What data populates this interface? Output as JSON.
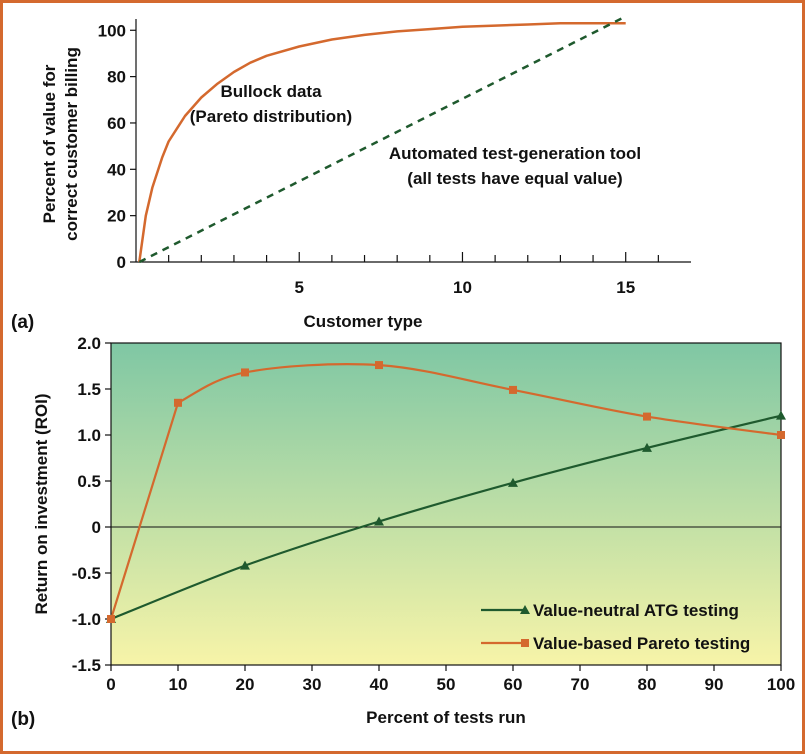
{
  "colors": {
    "frame": "#d4692e",
    "orange_series": "#d4692e",
    "green_series": "#1f5a2e",
    "gradient_top": "#7fc7a4",
    "gradient_bottom": "#f7f4a8"
  },
  "chart_data": [
    {
      "panel_label": "(a)",
      "type": "line",
      "xlabel": "Customer type",
      "ylabel": "Percent of value for correct customer billing",
      "ylabel_lines": [
        "Percent of value for",
        "correct customer billing"
      ],
      "xlim": [
        0,
        17
      ],
      "ylim": [
        0,
        104
      ],
      "x_ticks": [
        5,
        10,
        15
      ],
      "x_tick_labels": [
        "5",
        "10",
        "15"
      ],
      "y_ticks": [
        0,
        20,
        40,
        60,
        80,
        100
      ],
      "y_tick_labels": [
        "0",
        "20",
        "40",
        "60",
        "80",
        "100"
      ],
      "annotations": [
        {
          "text": "Bullock data",
          "target": "bullock"
        },
        {
          "text": "(Pareto distribution)",
          "target": "bullock"
        },
        {
          "text": "Automated test-generation tool",
          "target": "atg"
        },
        {
          "text": "(all tests have equal value)",
          "target": "atg"
        }
      ],
      "series": [
        {
          "key": "bullock",
          "style": "solid",
          "x": [
            0.1,
            0.3,
            0.5,
            0.8,
            1.0,
            1.5,
            2.0,
            2.5,
            3.0,
            3.5,
            4.0,
            5.0,
            6.0,
            7.0,
            8.0,
            9.0,
            10.0,
            11.0,
            12.0,
            13.0,
            14.0,
            15.0
          ],
          "y": [
            0,
            20,
            32,
            45,
            52,
            63,
            71,
            77,
            82,
            86,
            89,
            93,
            96,
            98,
            99.5,
            100.5,
            101.5,
            102,
            102.5,
            103,
            103,
            103
          ]
        },
        {
          "key": "atg",
          "style": "dashed",
          "x": [
            0.1,
            15.0
          ],
          "y": [
            0,
            106
          ]
        }
      ]
    },
    {
      "panel_label": "(b)",
      "type": "line",
      "xlabel": "Percent of tests run",
      "ylabel": "Return on investment (ROI)",
      "xlim": [
        0,
        100
      ],
      "ylim": [
        -1.5,
        2.0
      ],
      "x_ticks": [
        0,
        10,
        20,
        30,
        40,
        50,
        60,
        70,
        80,
        90,
        100
      ],
      "x_tick_labels": [
        "0",
        "10",
        "20",
        "30",
        "40",
        "50",
        "60",
        "70",
        "80",
        "90",
        "100"
      ],
      "y_ticks": [
        -1.5,
        -1.0,
        -0.5,
        0,
        0.5,
        1.0,
        1.5,
        2.0
      ],
      "y_tick_labels": [
        "-1.5",
        "-1.0",
        "-0.5",
        "0",
        "0.5",
        "1.0",
        "1.5",
        "2.0"
      ],
      "legend": "bottom-right",
      "series": [
        {
          "name": "Value-neutral ATG testing",
          "marker": "triangle",
          "x": [
            0,
            20,
            40,
            60,
            80,
            100
          ],
          "y": [
            -1.0,
            -0.42,
            0.06,
            0.48,
            0.86,
            1.21
          ]
        },
        {
          "name": "Value-based Pareto testing",
          "marker": "square",
          "x": [
            0,
            10,
            20,
            40,
            60,
            80,
            100
          ],
          "y": [
            -1.0,
            1.35,
            1.68,
            1.76,
            1.49,
            1.2,
            1.0
          ]
        }
      ]
    }
  ]
}
